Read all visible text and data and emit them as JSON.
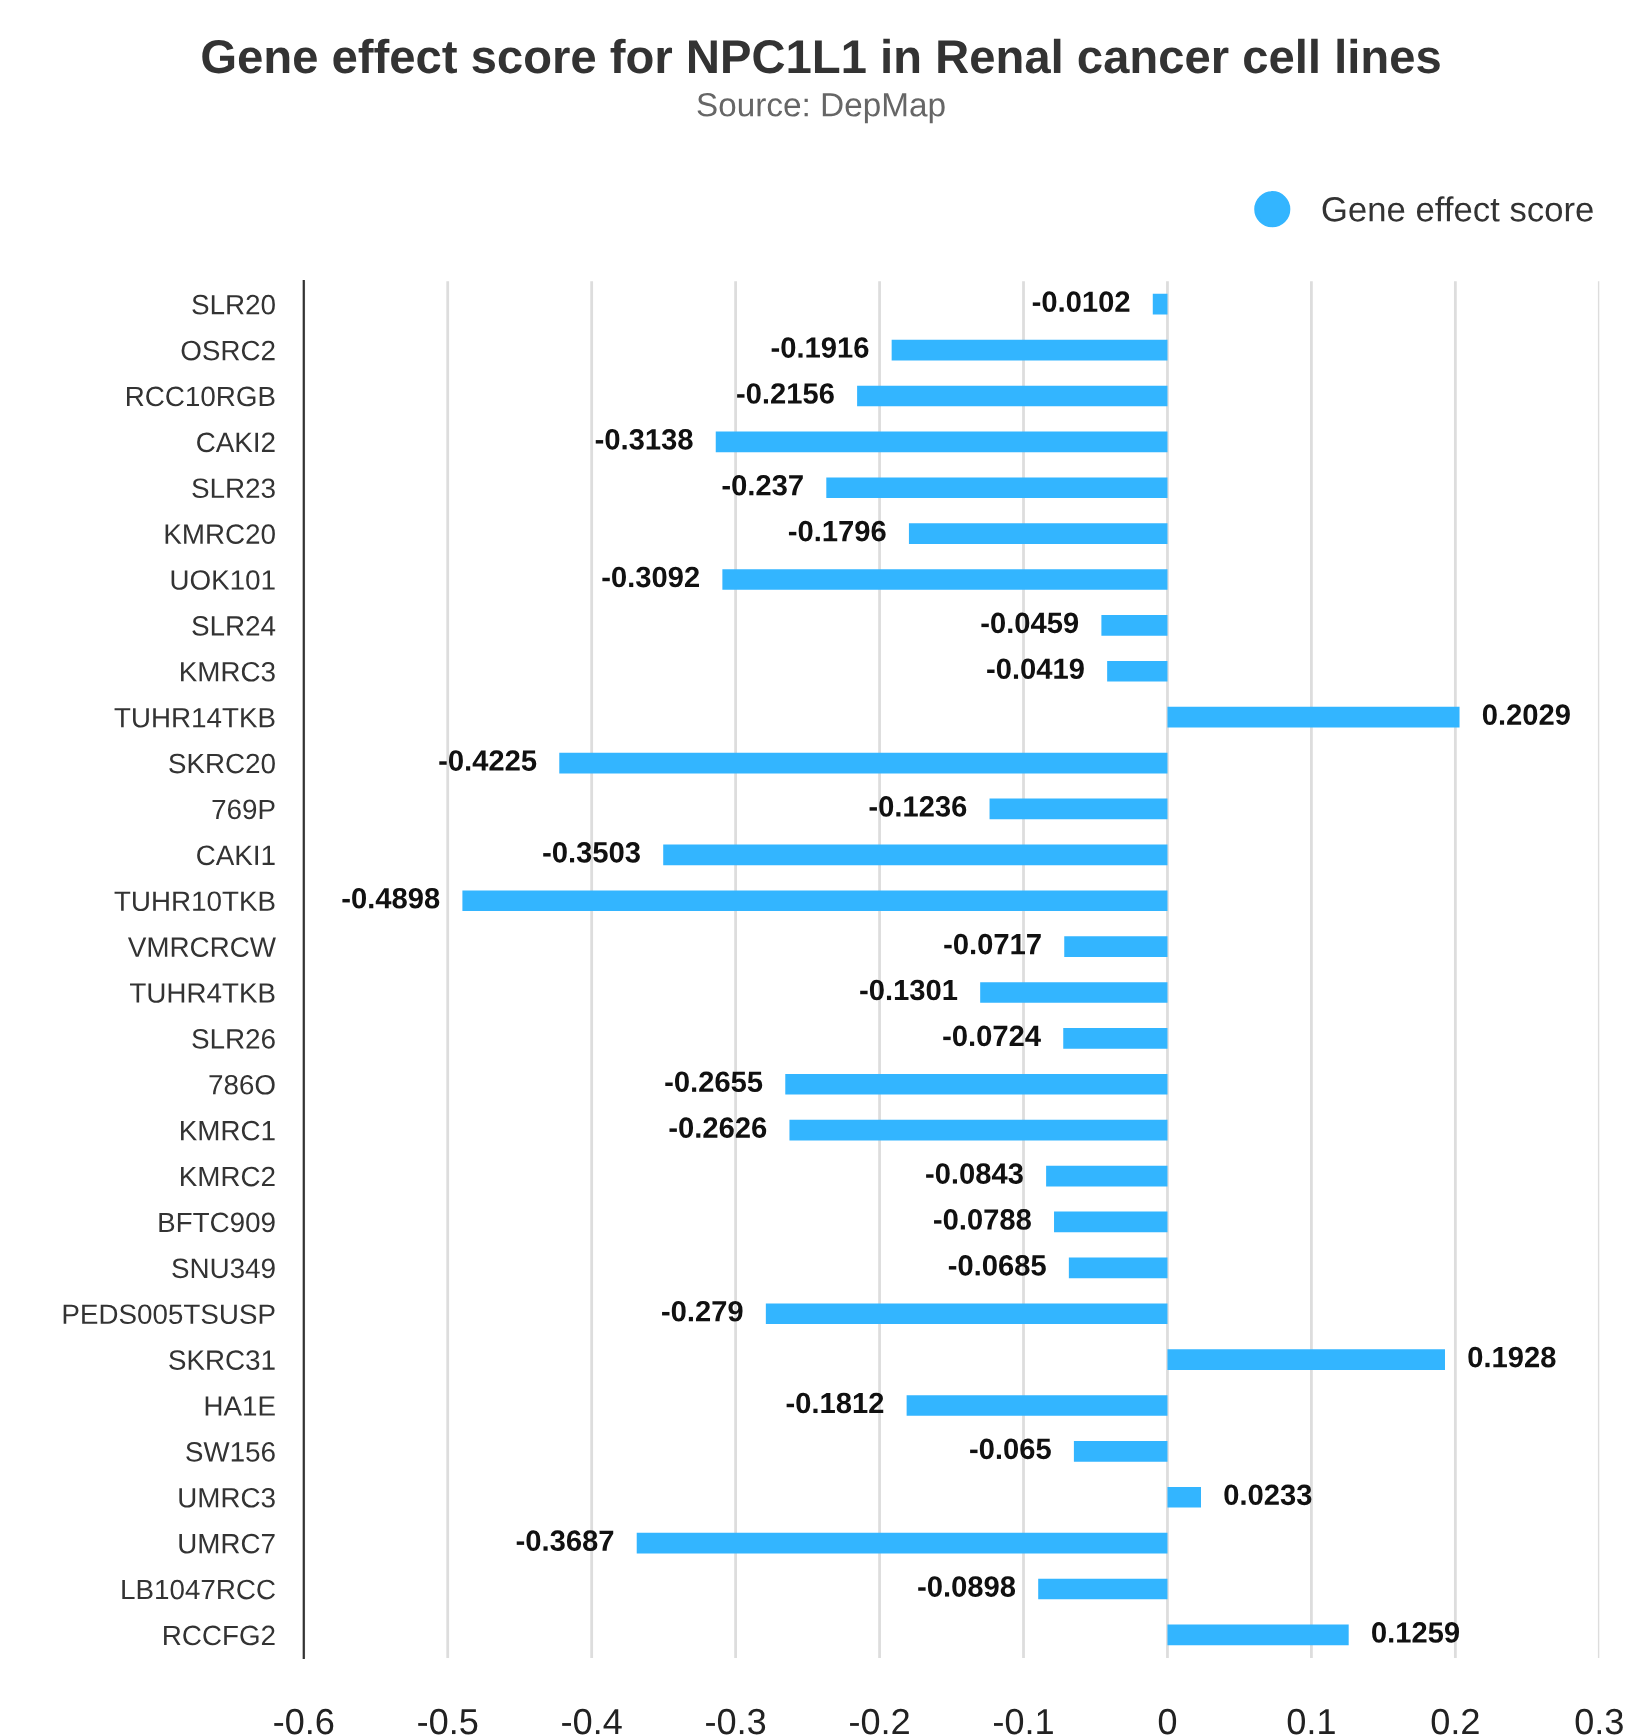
{
  "chart_data": {
    "type": "bar",
    "orientation": "horizontal",
    "title": "Gene effect score for NPC1L1 in Renal cancer cell lines",
    "subtitle": "Source: DepMap",
    "categories": [
      "SLR20",
      "OSRC2",
      "RCC10RGB",
      "CAKI2",
      "SLR23",
      "KMRC20",
      "UOK101",
      "SLR24",
      "KMRC3",
      "TUHR14TKB",
      "SKRC20",
      "769P",
      "CAKI1",
      "TUHR10TKB",
      "VMRCRCW",
      "TUHR4TKB",
      "SLR26",
      "786O",
      "KMRC1",
      "KMRC2",
      "BFTC909",
      "SNU349",
      "PEDS005TSUSP",
      "SKRC31",
      "HA1E",
      "SW156",
      "UMRC3",
      "UMRC7",
      "LB1047RCC",
      "RCCFG2"
    ],
    "series": [
      {
        "name": "Gene effect score",
        "color": "#33b5ff",
        "values": [
          -0.0102,
          -0.1916,
          -0.2156,
          -0.3138,
          -0.237,
          -0.1796,
          -0.3092,
          -0.0459,
          -0.0419,
          0.2029,
          -0.4225,
          -0.1236,
          -0.3503,
          -0.4898,
          -0.0717,
          -0.1301,
          -0.0724,
          -0.2655,
          -0.2626,
          -0.0843,
          -0.0788,
          -0.0685,
          -0.279,
          0.1928,
          -0.1812,
          -0.065,
          0.0233,
          -0.3687,
          -0.0898,
          0.1259
        ]
      }
    ],
    "xlim": [
      -0.6,
      0.3
    ],
    "xticks": [
      -0.6,
      -0.5,
      -0.4,
      -0.3,
      -0.2,
      -0.1,
      0,
      0.1,
      0.2,
      0.3
    ],
    "grid": "x",
    "legend": "top right",
    "marker": "circle",
    "data_labels": true
  }
}
